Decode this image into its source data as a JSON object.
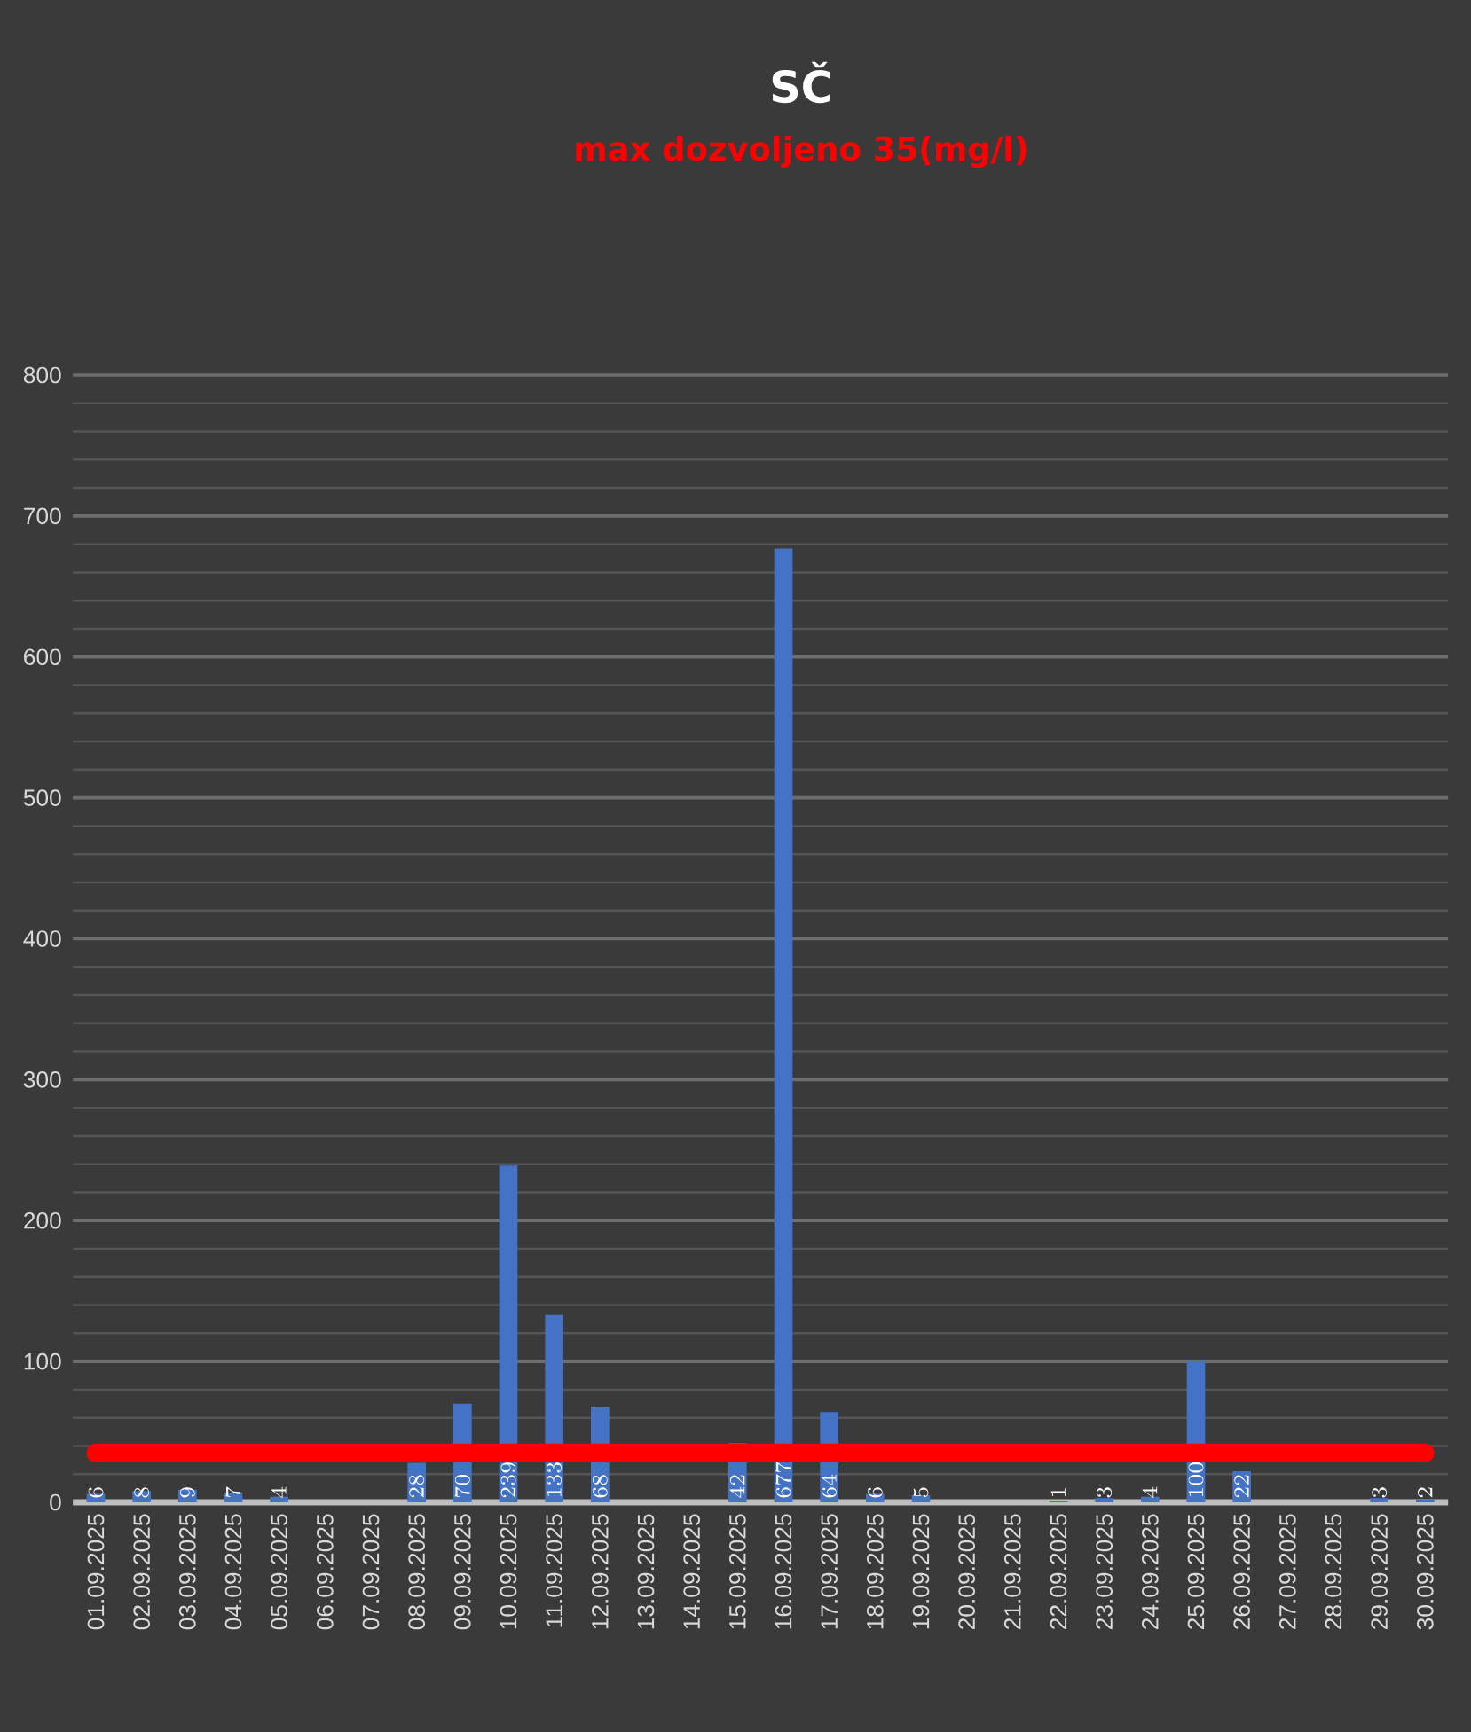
{
  "chart_data": {
    "type": "bar",
    "title": "SČ",
    "subtitle": "max dozvoljeno 35(mg/l)",
    "categories": [
      "01.09.2025",
      "02.09.2025",
      "03.09.2025",
      "04.09.2025",
      "05.09.2025",
      "06.09.2025",
      "07.09.2025",
      "08.09.2025",
      "09.09.2025",
      "10.09.2025",
      "11.09.2025",
      "12.09.2025",
      "13.09.2025",
      "14.09.2025",
      "15.09.2025",
      "16.09.2025",
      "17.09.2025",
      "18.09.2025",
      "19.09.2025",
      "20.09.2025",
      "21.09.2025",
      "22.09.2025",
      "23.09.2025",
      "24.09.2025",
      "25.09.2025",
      "26.09.2025",
      "27.09.2025",
      "28.09.2025",
      "29.09.2025",
      "30.09.2025"
    ],
    "values": [
      6,
      8,
      9,
      7,
      4,
      null,
      null,
      28,
      70,
      239,
      133,
      68,
      null,
      null,
      42,
      677,
      64,
      6,
      5,
      null,
      null,
      1,
      3,
      4,
      100,
      22,
      null,
      null,
      3,
      2
    ],
    "color": "#4472c4",
    "data_labels": true,
    "ylim": [
      0,
      800
    ],
    "yticks": [
      0,
      100,
      200,
      300,
      400,
      500,
      600,
      700,
      800
    ],
    "grid": "y",
    "ref_lines": [
      {
        "axis": "y",
        "value": 35,
        "color": "#ff0000"
      }
    ]
  }
}
